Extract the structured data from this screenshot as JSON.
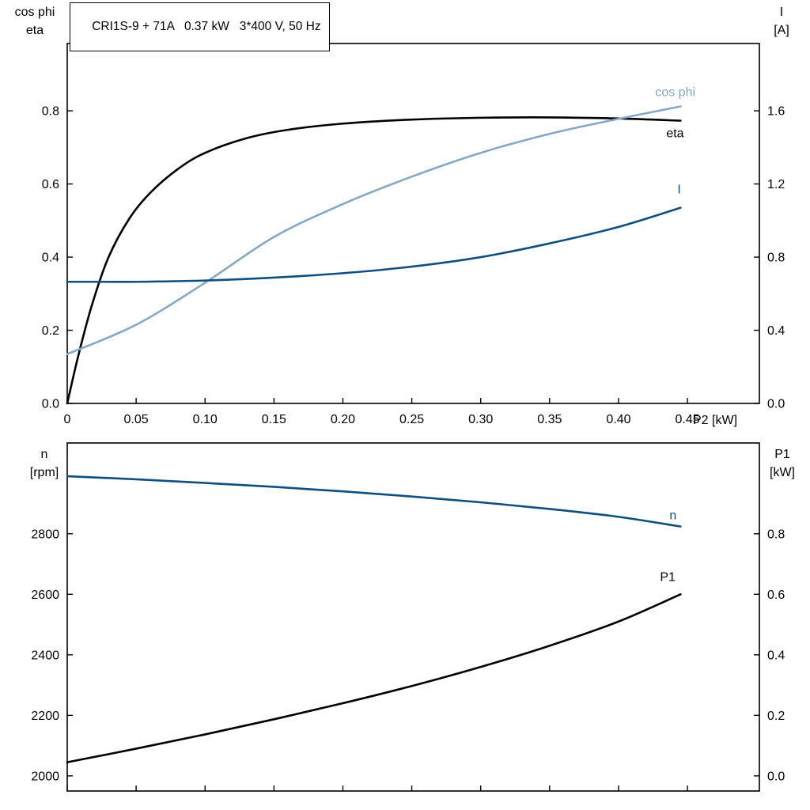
{
  "header": {
    "title": "CRI1S-9 + 71A   0.37 kW   3*400 V, 50 Hz"
  },
  "colors": {
    "black": "#000000",
    "light_blue": "#84a8c8",
    "dark_blue": "#0e4f7e",
    "background": "#ffffff"
  },
  "chart_data": [
    {
      "id": "top",
      "type": "line",
      "x_axis": {
        "label": "P2 [kW]",
        "min": 0,
        "max": 0.5022,
        "show_tick_labels": true,
        "ticks": [
          0,
          0.05,
          0.1,
          0.15,
          0.2,
          0.25,
          0.3,
          0.35,
          0.4,
          0.45
        ],
        "tick_labels": [
          "0",
          "0.05",
          "0.10",
          "0.15",
          "0.20",
          "0.25",
          "0.30",
          "0.35",
          "0.40",
          "0.45"
        ]
      },
      "left_axis": {
        "title_lines": [
          "cos phi",
          "eta"
        ],
        "min": 0,
        "max": 0.984,
        "ticks": [
          0.0,
          0.2,
          0.4,
          0.6,
          0.8
        ],
        "tick_labels": [
          "0.0",
          "0.2",
          "0.4",
          "0.6",
          "0.8"
        ]
      },
      "right_axis": {
        "title_lines": [
          "I",
          "[A]"
        ],
        "min": 0,
        "max": 1.968,
        "ticks": [
          0.0,
          0.4,
          0.8,
          1.2,
          1.6
        ],
        "tick_labels": [
          "0.0",
          "0.4",
          "0.8",
          "1.2",
          "1.6"
        ]
      },
      "series": [
        {
          "name": "eta",
          "label": "eta",
          "axis": "left",
          "color": "#000000",
          "label_dx": -18,
          "label_dy": 21,
          "x": [
            0,
            0.008,
            0.018,
            0.03,
            0.045,
            0.06,
            0.08,
            0.1,
            0.13,
            0.16,
            0.2,
            0.25,
            0.3,
            0.35,
            0.4,
            0.445
          ],
          "y": [
            0,
            0.13,
            0.27,
            0.4,
            0.505,
            0.575,
            0.64,
            0.685,
            0.725,
            0.748,
            0.765,
            0.776,
            0.781,
            0.782,
            0.779,
            0.773
          ]
        },
        {
          "name": "cos phi",
          "label": "cos phi",
          "axis": "left",
          "color": "#84a8c8",
          "label_dx": -32,
          "label_dy": -13,
          "x": [
            0,
            0.05,
            0.1,
            0.15,
            0.2,
            0.25,
            0.3,
            0.35,
            0.4,
            0.445
          ],
          "y": [
            0.135,
            0.215,
            0.33,
            0.455,
            0.545,
            0.62,
            0.685,
            0.737,
            0.778,
            0.812
          ]
        },
        {
          "name": "I",
          "label": "I",
          "axis": "right",
          "color": "#0e4f7e",
          "label_dx": -4,
          "label_dy": -18,
          "x": [
            0,
            0.025,
            0.05,
            0.1,
            0.15,
            0.2,
            0.25,
            0.3,
            0.35,
            0.4,
            0.445
          ],
          "y": [
            0.665,
            0.665,
            0.665,
            0.672,
            0.688,
            0.712,
            0.748,
            0.8,
            0.875,
            0.965,
            1.07
          ]
        }
      ]
    },
    {
      "id": "bottom",
      "type": "line",
      "x_axis": {
        "label": "",
        "min": 0,
        "max": 0.5022,
        "show_tick_labels": false,
        "ticks": [
          0,
          0.05,
          0.1,
          0.15,
          0.2,
          0.25,
          0.3,
          0.35,
          0.4,
          0.45
        ],
        "tick_labels": [
          "",
          "",
          "",
          "",
          "",
          "",
          "",
          "",
          "",
          ""
        ]
      },
      "left_axis": {
        "title_lines": [
          "n",
          "[rpm]"
        ],
        "min": 1950,
        "max": 3100,
        "ticks": [
          2000,
          2200,
          2400,
          2600,
          2800
        ],
        "tick_labels": [
          "2000",
          "2200",
          "2400",
          "2600",
          "2800"
        ]
      },
      "right_axis": {
        "title_lines": [
          "P1",
          "[kW]"
        ],
        "min": -0.05,
        "max": 1.1,
        "ticks": [
          0.0,
          0.2,
          0.4,
          0.6,
          0.8
        ],
        "tick_labels": [
          "0.0",
          "0.2",
          "0.4",
          "0.6",
          "0.8"
        ]
      },
      "series": [
        {
          "name": "n",
          "label": "n",
          "axis": "left",
          "color": "#0e4f7e",
          "label_dx": -14,
          "label_dy": -9,
          "x": [
            0,
            0.05,
            0.1,
            0.15,
            0.2,
            0.25,
            0.3,
            0.35,
            0.4,
            0.445
          ],
          "y": [
            2990,
            2980,
            2968,
            2955,
            2940,
            2923,
            2904,
            2882,
            2856,
            2824
          ]
        },
        {
          "name": "P1",
          "label": "P1",
          "axis": "right",
          "color": "#000000",
          "label_dx": -26,
          "label_dy": -17,
          "x": [
            0,
            0.05,
            0.1,
            0.15,
            0.2,
            0.25,
            0.3,
            0.35,
            0.4,
            0.445
          ],
          "y": [
            0.045,
            0.09,
            0.137,
            0.187,
            0.24,
            0.297,
            0.36,
            0.43,
            0.51,
            0.6
          ]
        }
      ]
    }
  ]
}
